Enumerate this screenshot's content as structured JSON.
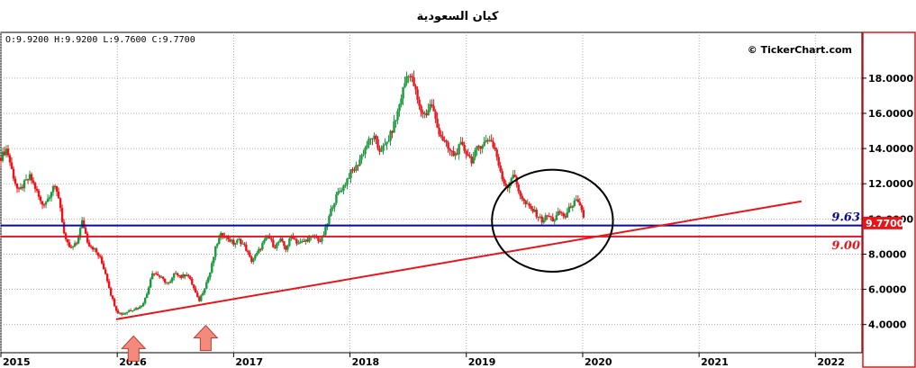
{
  "chart_data": {
    "type": "candlestick",
    "title": "كيان السعودية",
    "ohlc_label": "O:9.9200  H:9.9200  L:9.7600  C:9.7700",
    "watermark": "© TickerChart.com",
    "x_tick_labels": [
      "2015",
      "2016",
      "2017",
      "2018",
      "2019",
      "2020",
      "2021",
      "2022"
    ],
    "x_ticks": [
      2015.0,
      2016.0,
      2017.0,
      2018.0,
      2019.0,
      2020.0,
      2021.0,
      2022.0
    ],
    "xlim": [
      2015.0,
      2022.4
    ],
    "y_tick_labels": [
      "4.0000",
      "6.0000",
      "8.0000",
      "10.0000",
      "12.0000",
      "14.0000",
      "16.0000",
      "18.0000"
    ],
    "y_ticks": [
      4,
      6,
      8,
      10,
      12,
      14,
      16,
      18
    ],
    "ylim": [
      2.4,
      20.6
    ],
    "last_price": 9.77,
    "last_price_label": "9.7700",
    "horizontal_levels": [
      {
        "value": 9.63,
        "label": "9.63",
        "color": "#0a0a9c"
      },
      {
        "value": 9.0,
        "label": "9.00",
        "color": "#e8141a"
      }
    ],
    "trendline": {
      "from": {
        "x": 2015.99,
        "y": 4.3
      },
      "to": {
        "x": 2021.88,
        "y": 11.0
      },
      "color": "#e8141a"
    },
    "ellipse": {
      "center": {
        "x": 2019.74,
        "y": 9.9
      },
      "rx_years": 0.52,
      "ry_value": 2.9
    },
    "arrows": [
      {
        "x": 2016.14,
        "y": 3.35
      },
      {
        "x": 2016.76,
        "y": 3.95
      }
    ],
    "series": [
      {
        "x": 2015.0,
        "y": 13.5
      },
      {
        "x": 2015.05,
        "y": 14.0
      },
      {
        "x": 2015.1,
        "y": 12.6
      },
      {
        "x": 2015.15,
        "y": 11.5
      },
      {
        "x": 2015.2,
        "y": 12.0
      },
      {
        "x": 2015.25,
        "y": 12.4
      },
      {
        "x": 2015.3,
        "y": 11.7
      },
      {
        "x": 2015.35,
        "y": 10.8
      },
      {
        "x": 2015.4,
        "y": 11.1
      },
      {
        "x": 2015.45,
        "y": 11.9
      },
      {
        "x": 2015.5,
        "y": 11.2
      },
      {
        "x": 2015.55,
        "y": 8.8
      },
      {
        "x": 2015.6,
        "y": 8.3
      },
      {
        "x": 2015.65,
        "y": 8.6
      },
      {
        "x": 2015.7,
        "y": 9.9
      },
      {
        "x": 2015.75,
        "y": 8.6
      },
      {
        "x": 2015.8,
        "y": 8.3
      },
      {
        "x": 2015.85,
        "y": 7.8
      },
      {
        "x": 2015.9,
        "y": 6.9
      },
      {
        "x": 2015.95,
        "y": 5.6
      },
      {
        "x": 2016.0,
        "y": 4.7
      },
      {
        "x": 2016.05,
        "y": 4.6
      },
      {
        "x": 2016.1,
        "y": 4.8
      },
      {
        "x": 2016.15,
        "y": 4.9
      },
      {
        "x": 2016.2,
        "y": 5.0
      },
      {
        "x": 2016.25,
        "y": 5.6
      },
      {
        "x": 2016.3,
        "y": 7.0
      },
      {
        "x": 2016.35,
        "y": 6.8
      },
      {
        "x": 2016.4,
        "y": 6.5
      },
      {
        "x": 2016.45,
        "y": 6.3
      },
      {
        "x": 2016.5,
        "y": 7.0
      },
      {
        "x": 2016.55,
        "y": 6.7
      },
      {
        "x": 2016.6,
        "y": 6.9
      },
      {
        "x": 2016.65,
        "y": 6.2
      },
      {
        "x": 2016.7,
        "y": 5.3
      },
      {
        "x": 2016.75,
        "y": 6.1
      },
      {
        "x": 2016.8,
        "y": 7.0
      },
      {
        "x": 2016.85,
        "y": 8.5
      },
      {
        "x": 2016.9,
        "y": 9.2
      },
      {
        "x": 2016.95,
        "y": 8.9
      },
      {
        "x": 2017.0,
        "y": 8.6
      },
      {
        "x": 2017.05,
        "y": 8.8
      },
      {
        "x": 2017.1,
        "y": 8.4
      },
      {
        "x": 2017.15,
        "y": 7.6
      },
      {
        "x": 2017.2,
        "y": 8.0
      },
      {
        "x": 2017.25,
        "y": 8.6
      },
      {
        "x": 2017.3,
        "y": 9.0
      },
      {
        "x": 2017.35,
        "y": 8.4
      },
      {
        "x": 2017.4,
        "y": 8.8
      },
      {
        "x": 2017.45,
        "y": 8.3
      },
      {
        "x": 2017.5,
        "y": 9.1
      },
      {
        "x": 2017.55,
        "y": 8.6
      },
      {
        "x": 2017.6,
        "y": 8.7
      },
      {
        "x": 2017.65,
        "y": 8.9
      },
      {
        "x": 2017.7,
        "y": 9.0
      },
      {
        "x": 2017.75,
        "y": 8.7
      },
      {
        "x": 2017.8,
        "y": 9.6
      },
      {
        "x": 2017.85,
        "y": 10.8
      },
      {
        "x": 2017.9,
        "y": 11.5
      },
      {
        "x": 2017.95,
        "y": 11.9
      },
      {
        "x": 2018.0,
        "y": 12.6
      },
      {
        "x": 2018.05,
        "y": 12.9
      },
      {
        "x": 2018.1,
        "y": 13.6
      },
      {
        "x": 2018.15,
        "y": 14.3
      },
      {
        "x": 2018.2,
        "y": 14.7
      },
      {
        "x": 2018.25,
        "y": 13.9
      },
      {
        "x": 2018.3,
        "y": 14.1
      },
      {
        "x": 2018.35,
        "y": 14.8
      },
      {
        "x": 2018.4,
        "y": 15.8
      },
      {
        "x": 2018.45,
        "y": 17.2
      },
      {
        "x": 2018.5,
        "y": 18.4
      },
      {
        "x": 2018.55,
        "y": 17.6
      },
      {
        "x": 2018.6,
        "y": 16.2
      },
      {
        "x": 2018.65,
        "y": 15.9
      },
      {
        "x": 2018.7,
        "y": 16.6
      },
      {
        "x": 2018.75,
        "y": 15.2
      },
      {
        "x": 2018.8,
        "y": 14.5
      },
      {
        "x": 2018.85,
        "y": 13.9
      },
      {
        "x": 2018.9,
        "y": 13.6
      },
      {
        "x": 2018.95,
        "y": 14.2
      },
      {
        "x": 2019.0,
        "y": 13.8
      },
      {
        "x": 2019.05,
        "y": 13.3
      },
      {
        "x": 2019.1,
        "y": 14.1
      },
      {
        "x": 2019.15,
        "y": 14.3
      },
      {
        "x": 2019.2,
        "y": 14.6
      },
      {
        "x": 2019.25,
        "y": 13.9
      },
      {
        "x": 2019.3,
        "y": 12.4
      },
      {
        "x": 2019.35,
        "y": 11.8
      },
      {
        "x": 2019.4,
        "y": 12.6
      },
      {
        "x": 2019.45,
        "y": 11.6
      },
      {
        "x": 2019.5,
        "y": 10.9
      },
      {
        "x": 2019.55,
        "y": 10.6
      },
      {
        "x": 2019.6,
        "y": 10.3
      },
      {
        "x": 2019.65,
        "y": 9.9
      },
      {
        "x": 2019.7,
        "y": 10.2
      },
      {
        "x": 2019.75,
        "y": 9.9
      },
      {
        "x": 2019.8,
        "y": 10.4
      },
      {
        "x": 2019.85,
        "y": 10.1
      },
      {
        "x": 2019.9,
        "y": 10.8
      },
      {
        "x": 2019.95,
        "y": 11.0
      },
      {
        "x": 2020.0,
        "y": 10.3
      },
      {
        "x": 2020.02,
        "y": 9.77
      }
    ]
  }
}
